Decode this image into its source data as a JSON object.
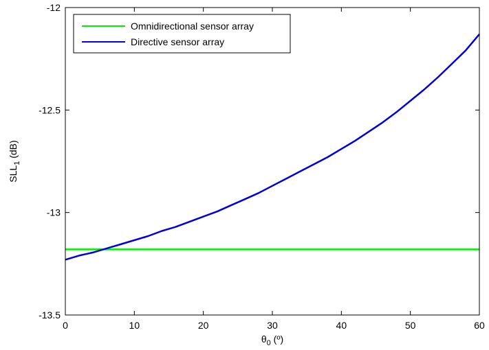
{
  "chart_data": {
    "type": "line",
    "title": "",
    "xlabel": {
      "base": "θ",
      "sub": "0",
      "rest": " (º)"
    },
    "ylabel": {
      "base": "SLL",
      "sub": "1",
      "rest": " (dB)"
    },
    "xlim": [
      0,
      60
    ],
    "ylim": [
      -13.5,
      -12
    ],
    "xticks": [
      0,
      10,
      20,
      30,
      40,
      50,
      60
    ],
    "yticks": [
      -13.5,
      -13,
      -12.5,
      -12
    ],
    "xtick_labels": [
      "0",
      "10",
      "20",
      "30",
      "40",
      "50",
      "60"
    ],
    "ytick_labels": [
      "-13.5",
      "-13",
      "-12.5",
      "-12"
    ],
    "grid": false,
    "legend_position": "top-left",
    "series": [
      {
        "name": "Omnidirectional sensor array",
        "color": "#00ee00",
        "x": [
          0,
          60
        ],
        "y": [
          -13.18,
          -13.18
        ]
      },
      {
        "name": "Directive sensor array",
        "color": "#0000dd",
        "x": [
          0,
          2,
          4,
          6,
          8,
          10,
          12,
          14,
          16,
          18,
          20,
          22,
          24,
          26,
          28,
          30,
          32,
          34,
          36,
          38,
          40,
          42,
          44,
          46,
          48,
          50,
          52,
          54,
          56,
          58,
          60
        ],
        "y": [
          -13.23,
          -13.21,
          -13.195,
          -13.175,
          -13.155,
          -13.135,
          -13.115,
          -13.09,
          -13.07,
          -13.045,
          -13.02,
          -12.995,
          -12.965,
          -12.935,
          -12.905,
          -12.87,
          -12.835,
          -12.8,
          -12.765,
          -12.73,
          -12.69,
          -12.65,
          -12.605,
          -12.56,
          -12.51,
          -12.455,
          -12.4,
          -12.34,
          -12.275,
          -12.21,
          -12.13
        ]
      }
    ]
  }
}
